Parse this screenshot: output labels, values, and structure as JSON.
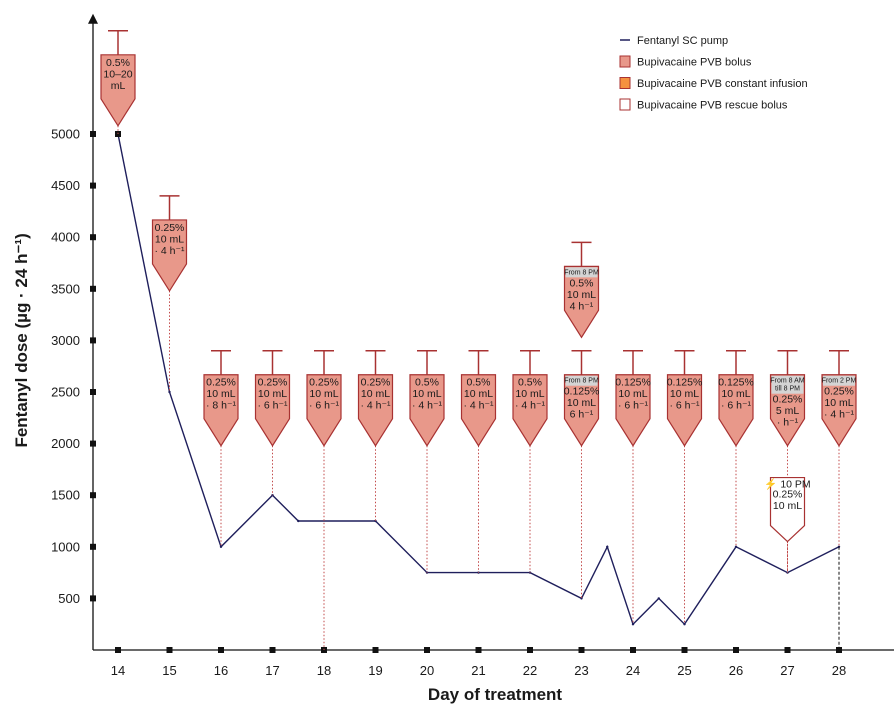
{
  "chart_data": {
    "type": "line",
    "title": "",
    "xlabel": "Day of treatment",
    "ylabel": "Fentanyl dose (µg · 24 h⁻¹)",
    "x_ticks": [
      14,
      15,
      16,
      17,
      18,
      19,
      20,
      21,
      22,
      23,
      24,
      25,
      26,
      27,
      28
    ],
    "y_ticks": [
      500,
      1000,
      1500,
      2000,
      2500,
      3000,
      3500,
      4000,
      4500,
      5000
    ],
    "xlim": [
      13.5,
      29.5
    ],
    "ylim": [
      0,
      6000
    ],
    "grid": false,
    "legend_position": "top-right",
    "series": [
      {
        "name": "Fentanyl SC pump",
        "color": "#1f1f5c",
        "x": [
          14,
          15,
          16,
          17,
          17.5,
          19,
          20,
          21,
          22,
          23,
          23.5,
          24,
          24.5,
          25,
          26,
          27,
          28
        ],
        "y": [
          5000,
          2500,
          1000,
          1500,
          1250,
          1250,
          750,
          750,
          750,
          500,
          1000,
          250,
          500,
          250,
          1000,
          750,
          1000
        ]
      }
    ],
    "legend": [
      {
        "label": "Fentanyl SC pump",
        "kind": "line",
        "color": "#1f1f5c"
      },
      {
        "label": "Bupivacaine PVB bolus",
        "kind": "box",
        "color": "#e8988a"
      },
      {
        "label": "Bupivacaine PVB constant infusion",
        "kind": "box",
        "color": "#f5913f"
      },
      {
        "label": "Bupivacaine PVB rescue bolus",
        "kind": "box",
        "color": "#ffffff"
      }
    ],
    "syringes": [
      {
        "day": 14,
        "type": "bolus",
        "level": 6000,
        "header": "",
        "lines": [
          "0.5%",
          "10–20",
          "mL"
        ]
      },
      {
        "day": 15,
        "type": "bolus",
        "level": 4400,
        "header": "",
        "lines": [
          "0.25%",
          "10 mL",
          "· 4 h⁻¹"
        ]
      },
      {
        "day": 16,
        "type": "bolus",
        "level": 2900,
        "header": "",
        "lines": [
          "0.25%",
          "10 mL",
          "· 8 h⁻¹"
        ]
      },
      {
        "day": 17,
        "type": "bolus",
        "level": 2900,
        "header": "",
        "lines": [
          "0.25%",
          "10 mL",
          "· 6 h⁻¹"
        ]
      },
      {
        "day": 18,
        "type": "bolus",
        "level": 2900,
        "header": "",
        "lines": [
          "0.25%",
          "10 mL",
          "· 6 h⁻¹"
        ]
      },
      {
        "day": 19,
        "type": "bolus",
        "level": 2900,
        "header": "",
        "lines": [
          "0.25%",
          "10 mL",
          "· 4 h⁻¹"
        ]
      },
      {
        "day": 20,
        "type": "bolus",
        "level": 2900,
        "header": "",
        "lines": [
          "0.5%",
          "10 mL",
          "· 4 h⁻¹"
        ]
      },
      {
        "day": 21,
        "type": "bolus",
        "level": 2900,
        "header": "",
        "lines": [
          "0.5%",
          "10 mL",
          "· 4 h⁻¹"
        ]
      },
      {
        "day": 22,
        "type": "bolus",
        "level": 2900,
        "header": "",
        "lines": [
          "0.5%",
          "10 mL",
          "· 4 h⁻¹"
        ]
      },
      {
        "day": 23,
        "type": "bolus",
        "level": 2900,
        "header": "From 8 PM",
        "lines": [
          "0.125%",
          "10 mL",
          "6 h⁻¹"
        ]
      },
      {
        "day": 23,
        "type": "bolus",
        "level": 3950,
        "header": "From 8 PM",
        "lines": [
          "0.5%",
          "10 mL",
          "4 h⁻¹"
        ]
      },
      {
        "day": 24,
        "type": "bolus",
        "level": 2900,
        "header": "",
        "lines": [
          "0.125%",
          "10 mL",
          "· 6 h⁻¹"
        ]
      },
      {
        "day": 25,
        "type": "bolus",
        "level": 2900,
        "header": "",
        "lines": [
          "0.125%",
          "10 mL",
          "· 6 h⁻¹"
        ]
      },
      {
        "day": 26,
        "type": "bolus",
        "level": 2900,
        "header": "",
        "lines": [
          "0.125%",
          "10 mL",
          "· 6 h⁻¹"
        ]
      },
      {
        "day": 27,
        "type": "bolus",
        "level": 2900,
        "header": "From 8 AM till 8 PM",
        "lines": [
          "0.25%",
          "5 mL",
          "· h⁻¹"
        ]
      },
      {
        "day": 28,
        "type": "bolus",
        "level": 2900,
        "header": "From 2 PM",
        "lines": [
          "0.25%",
          "10 mL",
          "· 4 h⁻¹"
        ]
      },
      {
        "day": 27,
        "type": "rescue",
        "level": 1700,
        "header": "⚡ 10 PM",
        "lines": [
          "0.25%",
          "10 mL"
        ]
      }
    ]
  }
}
